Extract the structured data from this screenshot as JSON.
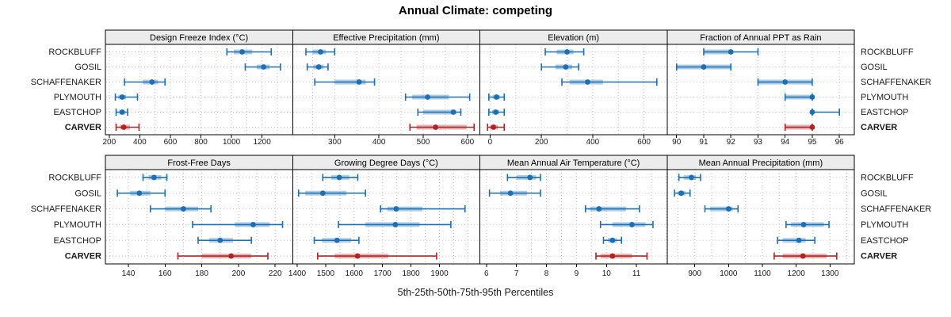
{
  "title": "Annual Climate: competing",
  "xlabel": "5th-25th-50th-75th-95th Percentiles",
  "categories": [
    "ROCKBLUFF",
    "GOSIL",
    "SCHAFFENAKER",
    "PLYMOUTH",
    "EASTCHOP",
    "CARVER"
  ],
  "highlight_category": "CARVER",
  "colors": {
    "series_blue": "#1b6fb5",
    "series_red": "#b22222",
    "strip_bg": "#ececec",
    "panel_border": "#000000",
    "grid": "#c4c4c4",
    "band_opacity": 0.35
  },
  "chart_data": {
    "type": "interval-dotplot-trellis",
    "description": "Horizontal 5th-25th-50th-75th-95th percentile intervals (line = 5th-95th with end caps, thick translucent band = 25th-75th, dot = median) per station, one panel per climate variable. CARVER highlighted in red.",
    "percentiles": [
      5,
      25,
      50,
      75,
      95
    ],
    "categories": [
      "ROCKBLUFF",
      "GOSIL",
      "SCHAFFENAKER",
      "PLYMOUTH",
      "EASTCHOP",
      "CARVER"
    ],
    "legend_position": "none",
    "grid": "dotted",
    "panels": [
      {
        "title": "Design Freeze Index (°C)",
        "xlim": [
          175,
          1400
        ],
        "ticks": [
          200,
          400,
          600,
          800,
          1000,
          1200
        ],
        "grid_minor": 100,
        "series": {
          "ROCKBLUFF": [
            970,
            1015,
            1070,
            1135,
            1260
          ],
          "GOSIL": [
            1090,
            1165,
            1210,
            1250,
            1320
          ],
          "SCHAFFENAKER": [
            300,
            420,
            480,
            520,
            565
          ],
          "PLYMOUTH": [
            240,
            260,
            285,
            310,
            385
          ],
          "EASTCHOP": [
            245,
            265,
            285,
            300,
            320
          ],
          "CARVER": [
            245,
            270,
            295,
            335,
            395
          ]
        }
      },
      {
        "title": "Effective Precipitation (mm)",
        "xlim": [
          205,
          628
        ],
        "ticks": [
          300,
          400,
          500,
          600
        ],
        "grid_minor": 50,
        "series": {
          "ROCKBLUFF": [
            235,
            250,
            268,
            280,
            300
          ],
          "GOSIL": [
            238,
            252,
            264,
            275,
            285
          ],
          "SCHAFFENAKER": [
            255,
            300,
            355,
            370,
            390
          ],
          "PLYMOUTH": [
            460,
            475,
            510,
            558,
            605
          ],
          "EASTCHOP": [
            488,
            500,
            568,
            575,
            585
          ],
          "CARVER": [
            470,
            485,
            528,
            598,
            615
          ]
        }
      },
      {
        "title": "Elevation (m)",
        "xlim": [
          -40,
          690
        ],
        "ticks": [
          0,
          200,
          400,
          600
        ],
        "grid_minor": 100,
        "series": {
          "ROCKBLUFF": [
            215,
            260,
            300,
            325,
            365
          ],
          "GOSIL": [
            200,
            255,
            295,
            320,
            345
          ],
          "SCHAFFENAKER": [
            280,
            310,
            380,
            440,
            650
          ],
          "PLYMOUTH": [
            -5,
            10,
            25,
            38,
            55
          ],
          "EASTCHOP": [
            -5,
            8,
            22,
            35,
            55
          ],
          "CARVER": [
            -10,
            0,
            13,
            30,
            55
          ]
        }
      },
      {
        "title": "Fraction of Annual PPT as Rain",
        "xlim": [
          89.65,
          96.55
        ],
        "ticks": [
          90,
          91,
          92,
          93,
          94,
          95,
          96
        ],
        "grid_minor": 1,
        "series": {
          "ROCKBLUFF": [
            91,
            91,
            92,
            92,
            93
          ],
          "GOSIL": [
            90,
            90,
            91,
            92,
            92
          ],
          "SCHAFFENAKER": [
            93,
            93,
            94,
            95,
            95
          ],
          "PLYMOUTH": [
            94,
            94,
            95,
            95,
            95
          ],
          "EASTCHOP": [
            95,
            95,
            95,
            95,
            96
          ],
          "CARVER": [
            94,
            94,
            95,
            95,
            95
          ]
        }
      },
      {
        "title": "Frost-Free Days",
        "xlim": [
          127.5,
          229.5
        ],
        "ticks": [
          140,
          160,
          180,
          200,
          220
        ],
        "grid_minor": 10,
        "series": {
          "ROCKBLUFF": [
            148,
            151,
            154,
            158,
            161
          ],
          "GOSIL": [
            134,
            141,
            146,
            152,
            160
          ],
          "SCHAFFENAKER": [
            152,
            160,
            170,
            178,
            185
          ],
          "PLYMOUTH": [
            175,
            198,
            208,
            217,
            224
          ],
          "EASTCHOP": [
            178,
            184,
            190,
            197,
            207
          ],
          "CARVER": [
            167,
            180,
            196,
            207,
            216
          ]
        }
      },
      {
        "title": "Growing Degree Days (°C)",
        "xlim": [
          1384,
          2042
        ],
        "ticks": [
          1400,
          1500,
          1600,
          1700,
          1800,
          1900
        ],
        "grid_minor": 50,
        "series": {
          "ROCKBLUFF": [
            1490,
            1520,
            1548,
            1583,
            1613
          ],
          "GOSIL": [
            1405,
            1428,
            1490,
            1573,
            1640
          ],
          "SCHAFFENAKER": [
            1693,
            1717,
            1748,
            1840,
            1990
          ],
          "PLYMOUTH": [
            1545,
            1640,
            1745,
            1830,
            1940
          ],
          "EASTCHOP": [
            1460,
            1487,
            1540,
            1590,
            1617
          ],
          "CARVER": [
            1472,
            1532,
            1612,
            1720,
            1890
          ]
        }
      },
      {
        "title": "Mean Annual Air Temperature (°C)",
        "xlim": [
          5.78,
          12.02
        ],
        "ticks": [
          6,
          7,
          8,
          9,
          10,
          11
        ],
        "grid_minor": 0.5,
        "series": {
          "ROCKBLUFF": [
            6.7,
            7.0,
            7.45,
            7.65,
            7.8
          ],
          "GOSIL": [
            6.1,
            6.45,
            6.8,
            7.35,
            7.8
          ],
          "SCHAFFENAKER": [
            9.3,
            9.45,
            9.75,
            10.65,
            11.1
          ],
          "PLYMOUTH": [
            9.8,
            10.2,
            10.85,
            11.3,
            11.55
          ],
          "EASTCHOP": [
            9.9,
            10.05,
            10.2,
            10.35,
            10.5
          ],
          "CARVER": [
            9.65,
            9.8,
            10.2,
            10.85,
            11.35
          ]
        }
      },
      {
        "title": "Mean Annual Precipitation (mm)",
        "xlim": [
          818,
          1372
        ],
        "ticks": [
          900,
          1000,
          1100,
          1200,
          1300
        ],
        "grid_minor": 50,
        "series": {
          "ROCKBLUFF": [
            853,
            867,
            890,
            903,
            917
          ],
          "GOSIL": [
            840,
            850,
            860,
            872,
            886
          ],
          "SCHAFFENAKER": [
            930,
            945,
            1000,
            1012,
            1028
          ],
          "PLYMOUTH": [
            1170,
            1185,
            1222,
            1282,
            1297
          ],
          "EASTCHOP": [
            1145,
            1160,
            1208,
            1228,
            1255
          ],
          "CARVER": [
            1135,
            1160,
            1220,
            1290,
            1320
          ]
        }
      }
    ]
  }
}
